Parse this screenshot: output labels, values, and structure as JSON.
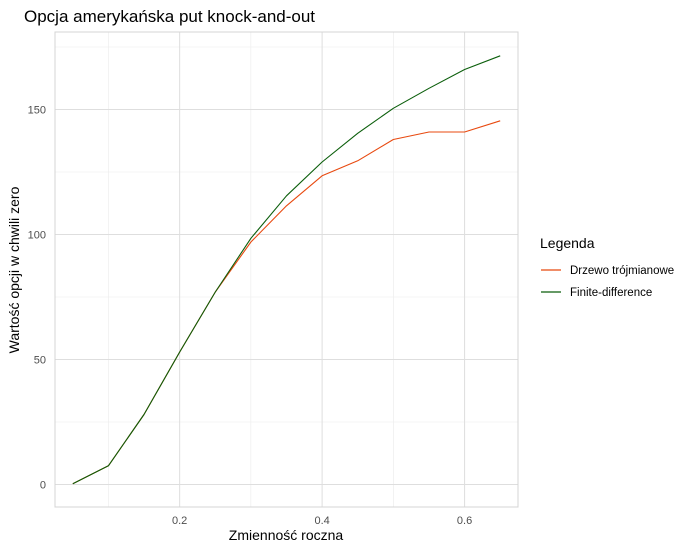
{
  "chart_data": {
    "type": "line",
    "title": "Opcja amerykańska put knock-and-out",
    "xlabel": "Zmienność roczna",
    "ylabel": "Wartość opcji w chwili zero",
    "xlim": [
      0.025,
      0.675
    ],
    "ylim": [
      -9,
      181
    ],
    "x_ticks": [
      0.2,
      0.4,
      0.6
    ],
    "x_tick_labels": [
      "0.2",
      "0.4",
      "0.6"
    ],
    "y_ticks": [
      0,
      50,
      100,
      150
    ],
    "y_tick_labels": [
      "0",
      "50",
      "100",
      "150"
    ],
    "grid": true,
    "legend": {
      "title": "Legenda",
      "position": "right"
    },
    "x": [
      0.05,
      0.1,
      0.15,
      0.2,
      0.25,
      0.3,
      0.35,
      0.4,
      0.45,
      0.5,
      0.55,
      0.6,
      0.65
    ],
    "series": [
      {
        "name": "Drzewo trójmianowe",
        "color": "#e8490f",
        "values": [
          0.3,
          7.5,
          28,
          53,
          77,
          97,
          111.5,
          123.5,
          129.5,
          138,
          141,
          141,
          145.5
        ]
      },
      {
        "name": "Finite-difference",
        "color": "#0b5e0b",
        "values": [
          0.3,
          7.5,
          28,
          53,
          77,
          98.5,
          115.5,
          129,
          140.5,
          150.5,
          158.5,
          166,
          171.5
        ]
      }
    ]
  }
}
